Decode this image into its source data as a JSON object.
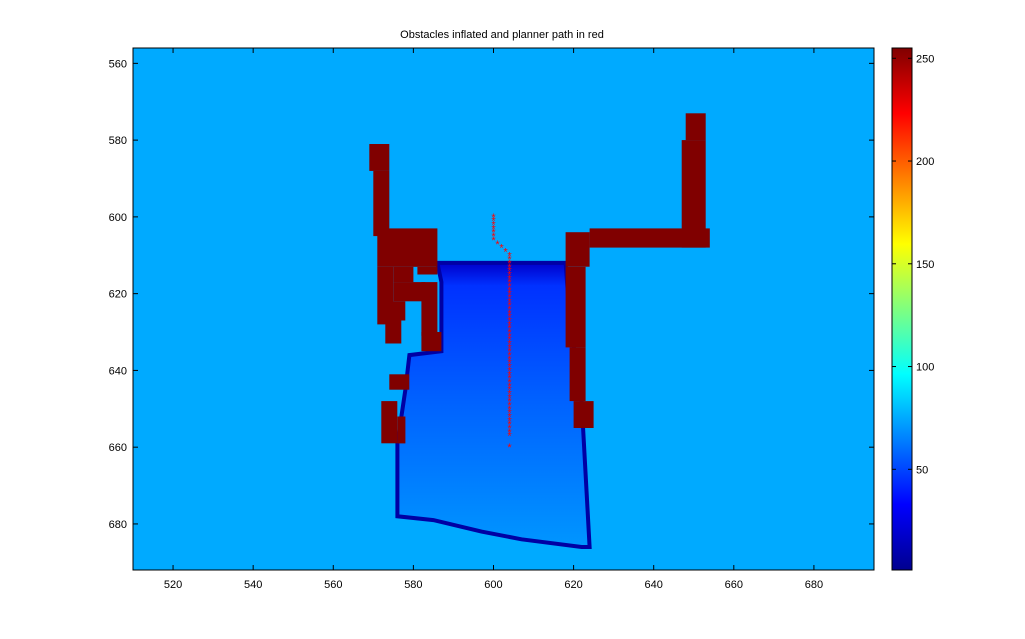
{
  "chart_data": {
    "type": "heatmap",
    "title": "Obstacles inflated and planner path in red",
    "xlabel": "",
    "ylabel": "",
    "xlim": [
      510,
      695
    ],
    "ylim": [
      692,
      556
    ],
    "x_ticks": [
      520,
      540,
      560,
      580,
      600,
      620,
      640,
      660,
      680
    ],
    "y_ticks": [
      560,
      580,
      600,
      620,
      640,
      660,
      680
    ],
    "colorbar": {
      "colormap": "jet",
      "range": [
        1,
        255
      ],
      "ticks": [
        50,
        100,
        150,
        200,
        250
      ]
    },
    "background_value": 75,
    "obstacle_value": 255,
    "obstacles": [
      {
        "x": [
          569,
          574
        ],
        "y": [
          581,
          588
        ]
      },
      {
        "x": [
          570,
          574
        ],
        "y": [
          588,
          605
        ]
      },
      {
        "x": [
          571,
          586
        ],
        "y": [
          603,
          613
        ]
      },
      {
        "x": [
          571,
          575
        ],
        "y": [
          613,
          628
        ]
      },
      {
        "x": [
          575,
          580
        ],
        "y": [
          613,
          617
        ]
      },
      {
        "x": [
          581,
          586
        ],
        "y": [
          613,
          615
        ]
      },
      {
        "x": [
          575,
          583
        ],
        "y": [
          617,
          622
        ]
      },
      {
        "x": [
          582,
          586
        ],
        "y": [
          617,
          631
        ]
      },
      {
        "x": [
          573,
          578
        ],
        "y": [
          622,
          627
        ]
      },
      {
        "x": [
          573,
          577
        ],
        "y": [
          627,
          633
        ]
      },
      {
        "x": [
          582,
          587
        ],
        "y": [
          630,
          635
        ]
      },
      {
        "x": [
          574,
          579
        ],
        "y": [
          641,
          645
        ]
      },
      {
        "x": [
          572,
          576
        ],
        "y": [
          648,
          659
        ]
      },
      {
        "x": [
          576,
          578
        ],
        "y": [
          652,
          659
        ]
      },
      {
        "x": [
          618,
          624
        ],
        "y": [
          604,
          613
        ]
      },
      {
        "x": [
          618,
          623
        ],
        "y": [
          613,
          634
        ]
      },
      {
        "x": [
          619,
          623
        ],
        "y": [
          634,
          648
        ]
      },
      {
        "x": [
          620,
          625
        ],
        "y": [
          648,
          655
        ]
      },
      {
        "x": [
          624,
          654
        ],
        "y": [
          603,
          608
        ]
      },
      {
        "x": [
          647,
          653
        ],
        "y": [
          580,
          608
        ]
      },
      {
        "x": [
          648,
          653
        ],
        "y": [
          573,
          580
        ]
      }
    ],
    "floor_region": {
      "polygon": [
        [
          586,
          612
        ],
        [
          618,
          612
        ],
        [
          619,
          626
        ],
        [
          622,
          648
        ],
        [
          624,
          686
        ],
        [
          622,
          686
        ],
        [
          607,
          684
        ],
        [
          597,
          682
        ],
        [
          585,
          679
        ],
        [
          576,
          678
        ],
        [
          576,
          659
        ],
        [
          578,
          645
        ],
        [
          579,
          636
        ],
        [
          587,
          635
        ],
        [
          587,
          617
        ]
      ],
      "value_range": [
        45,
        70
      ]
    },
    "series": [
      {
        "name": "planner path",
        "color": "#ff0000",
        "marker": "*",
        "x": [
          600,
          600,
          600,
          600,
          600,
          600,
          600,
          601,
          602,
          603,
          604,
          604,
          604,
          604,
          604,
          604,
          604,
          604,
          604,
          604,
          604,
          604,
          604,
          604,
          604,
          604,
          604,
          604,
          604,
          604,
          604,
          604,
          604,
          604,
          604,
          604,
          604,
          604,
          604,
          604,
          604,
          604,
          604,
          604,
          604,
          604,
          604,
          604,
          604,
          604,
          604,
          604,
          604,
          604,
          604,
          604,
          604,
          604,
          604
        ],
        "y": [
          600,
          601,
          602,
          603,
          604,
          605,
          606,
          607,
          608,
          609,
          610,
          611,
          612,
          613,
          614,
          615,
          616,
          617,
          618,
          619,
          620,
          621,
          622,
          623,
          624,
          625,
          626,
          627,
          628,
          629,
          630,
          631,
          632,
          633,
          634,
          635,
          636,
          637,
          638,
          639,
          640,
          641,
          642,
          643,
          644,
          645,
          646,
          647,
          648,
          649,
          650,
          651,
          652,
          653,
          654,
          655,
          656,
          657,
          660
        ]
      }
    ]
  }
}
